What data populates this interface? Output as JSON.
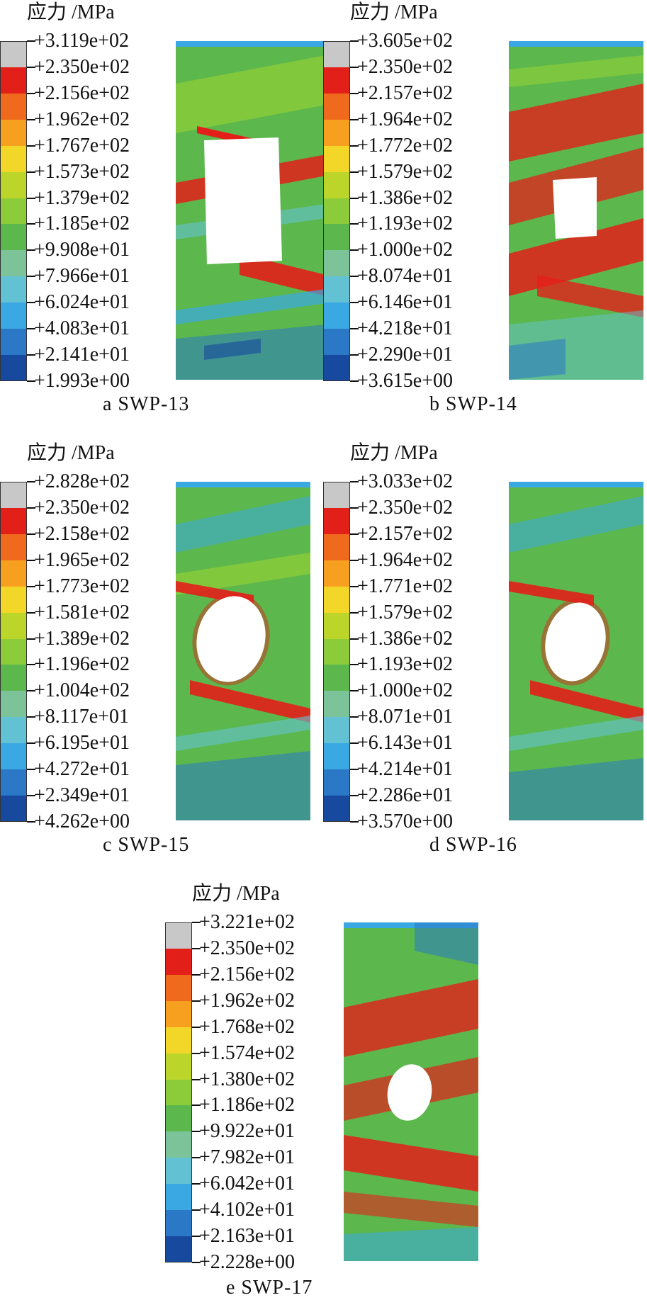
{
  "colorbar": [
    "#c8c8c8",
    "#e31f1a",
    "#ef6a1c",
    "#f7a01f",
    "#f3d728",
    "#bcd52b",
    "#8ccc3a",
    "#5cb84d",
    "#7cc39a",
    "#62c2d4",
    "#3aa8e2",
    "#2a78c6",
    "#17499e"
  ],
  "panels": [
    {
      "unit_label": "应力 /MPa",
      "levels": [
        "+3.119e+02",
        "+2.350e+02",
        "+2.156e+02",
        "+1.962e+02",
        "+1.767e+02",
        "+1.573e+02",
        "+1.379e+02",
        "+1.185e+02",
        "+9.908e+01",
        "+7.966e+01",
        "+6.024e+01",
        "+4.083e+01",
        "+2.141e+01",
        "+1.993e+00"
      ],
      "caption": "a  SWP-13",
      "opening": "rectangle"
    },
    {
      "unit_label": "应力 /MPa",
      "levels": [
        "+3.605e+02",
        "+2.350e+02",
        "+2.157e+02",
        "+1.964e+02",
        "+1.772e+02",
        "+1.579e+02",
        "+1.386e+02",
        "+1.193e+02",
        "+1.000e+02",
        "+8.074e+01",
        "+6.146e+01",
        "+4.218e+01",
        "+2.290e+01",
        "+3.615e+00"
      ],
      "caption": "b  SWP-14",
      "opening": "square"
    },
    {
      "unit_label": "应力 /MPa",
      "levels": [
        "+2.828e+02",
        "+2.350e+02",
        "+2.158e+02",
        "+1.965e+02",
        "+1.773e+02",
        "+1.581e+02",
        "+1.389e+02",
        "+1.196e+02",
        "+1.004e+02",
        "+8.117e+01",
        "+6.195e+01",
        "+4.272e+01",
        "+2.349e+01",
        "+4.262e+00"
      ],
      "caption": "c  SWP-15",
      "opening": "ellipse"
    },
    {
      "unit_label": "应力 /MPa",
      "levels": [
        "+3.033e+02",
        "+2.350e+02",
        "+2.157e+02",
        "+1.964e+02",
        "+1.771e+02",
        "+1.579e+02",
        "+1.386e+02",
        "+1.193e+02",
        "+1.000e+02",
        "+8.071e+01",
        "+6.143e+01",
        "+4.214e+01",
        "+2.286e+01",
        "+3.570e+00"
      ],
      "caption": "d  SWP-16",
      "opening": "ellipse"
    },
    {
      "unit_label": "应力 /MPa",
      "levels": [
        "+3.221e+02",
        "+2.350e+02",
        "+2.156e+02",
        "+1.962e+02",
        "+1.768e+02",
        "+1.574e+02",
        "+1.380e+02",
        "+1.186e+02",
        "+9.922e+01",
        "+7.982e+01",
        "+6.042e+01",
        "+4.102e+01",
        "+2.163e+01",
        "+2.228e+00"
      ],
      "caption": "e  SWP-17",
      "opening": "small-ellipse"
    }
  ]
}
